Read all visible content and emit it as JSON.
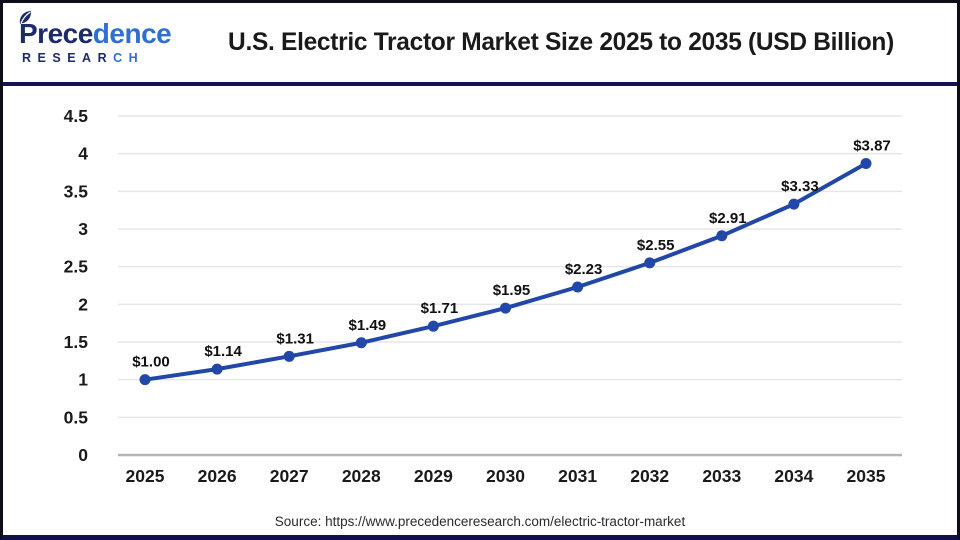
{
  "header": {
    "logo": {
      "word_dark": "Prece",
      "word_light": "dence",
      "sub_dark": "RESEAR",
      "sub_light": "CH",
      "color_dark": "#1c2b6e",
      "color_light": "#2f6fd4"
    },
    "title": "U.S. Electric Tractor Market Size 2025 to 2035 (USD Billion)"
  },
  "chart_data": {
    "type": "line",
    "title": "U.S. Electric Tractor Market Size 2025 to 2035 (USD Billion)",
    "categories": [
      "2025",
      "2026",
      "2027",
      "2028",
      "2029",
      "2030",
      "2031",
      "2032",
      "2033",
      "2034",
      "2035"
    ],
    "values": [
      1.0,
      1.14,
      1.31,
      1.49,
      1.71,
      1.95,
      2.23,
      2.55,
      2.91,
      3.33,
      3.87
    ],
    "point_labels": [
      "$1.00",
      "$1.14",
      "$1.31",
      "$1.49",
      "$1.71",
      "$1.95",
      "$2.23",
      "$2.55",
      "$2.91",
      "$3.33",
      "$3.87"
    ],
    "ylim": [
      0,
      4.5
    ],
    "ytick_step": 0.5,
    "ytick_labels": [
      "0",
      "0.5",
      "1",
      "1.5",
      "2",
      "2.5",
      "3",
      "3.5",
      "4",
      "4.5"
    ],
    "xlabel": "",
    "ylabel": "",
    "grid": true,
    "legend": "none",
    "line_color": "#2147a8",
    "marker_color": "#2147a8",
    "grid_color": "#e7e7e7",
    "axis_color": "#b5b5b5",
    "text_color": "#1a1a1a"
  },
  "footer": {
    "source": "Source: https://www.precedenceresearch.com/electric-tractor-market"
  }
}
